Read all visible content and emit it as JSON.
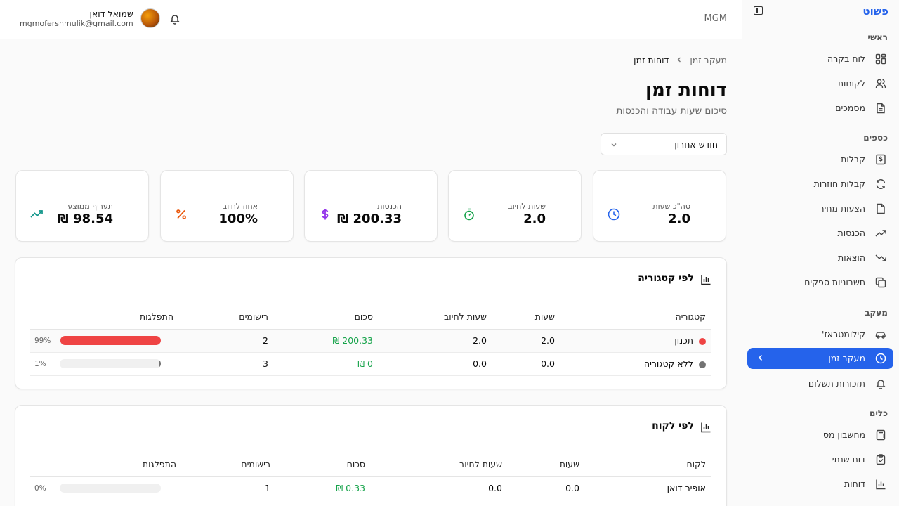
{
  "sidebar": {
    "brand": "פשוט",
    "sections": {
      "main": "ראשי",
      "money": "כספים",
      "tracking": "מעקב",
      "tools": "כלים"
    },
    "items": [
      {
        "label": "לוח בקרה",
        "icon": "dashboard-icon"
      },
      {
        "label": "לקוחות",
        "icon": "users-icon"
      },
      {
        "label": "מסמכים",
        "icon": "document-icon"
      },
      {
        "label": "קבלות",
        "icon": "receipt-icon"
      },
      {
        "label": "קבלות חוזרות",
        "icon": "refresh-icon"
      },
      {
        "label": "הצעות מחיר",
        "icon": "quote-icon"
      },
      {
        "label": "הכנסות",
        "icon": "trending-up-icon"
      },
      {
        "label": "הוצאות",
        "icon": "trending-down-icon"
      },
      {
        "label": "חשבוניות ספקים",
        "icon": "copy-icon"
      },
      {
        "label": "קילומטראז'",
        "icon": "car-icon"
      },
      {
        "label": "מעקב זמן",
        "icon": "clock-icon",
        "active": true
      },
      {
        "label": "תזכורות תשלום",
        "icon": "bell-icon"
      },
      {
        "label": "מחשבון מס",
        "icon": "calculator-icon"
      },
      {
        "label": "דוח שנתי",
        "icon": "clipboard-check-icon"
      },
      {
        "label": "דוחות",
        "icon": "bar-chart-icon"
      }
    ]
  },
  "header": {
    "app_label": "MGM",
    "user_name": "שמואל דואן",
    "user_email": "mgmofershmulik@gmail.com"
  },
  "breadcrumb": {
    "parent": "מעקב זמן",
    "current": "דוחות זמן"
  },
  "page": {
    "title": "דוחות זמן",
    "subtitle": "סיכום שעות עבודה והכנסות",
    "period": "חודש אחרון"
  },
  "stats": [
    {
      "label": "סה\"כ שעות",
      "value": "2.0",
      "icon": "clock-icon",
      "color": "#2563eb"
    },
    {
      "label": "שעות לחיוב",
      "value": "2.0",
      "icon": "timer-icon",
      "color": "#16a34a"
    },
    {
      "label": "הכנסות",
      "value": "200.33 ₪",
      "icon": "dollar-icon",
      "color": "#9333ea"
    },
    {
      "label": "אחוז לחיוב",
      "value": "100%",
      "icon": "percent-icon",
      "color": "#ea580c"
    },
    {
      "label": "תעריף ממוצע",
      "value": "98.54 ₪",
      "icon": "trending-up-icon",
      "color": "#0d9488"
    }
  ],
  "by_category": {
    "title": "לפי קטגוריה",
    "headers": [
      "קטגוריה",
      "שעות",
      "שעות לחיוב",
      "סכום",
      "רישומים",
      "התפלגות"
    ],
    "rows": [
      {
        "name": "תכנון",
        "color": "#ef4444",
        "hours": "2.0",
        "billable": "2.0",
        "amount": "200.33 ₪",
        "entries": "2",
        "pct": "99%",
        "fill": 0.99
      },
      {
        "name": "ללא קטגוריה",
        "color": "#737373",
        "hours": "0.0",
        "billable": "0.0",
        "amount": "0 ₪",
        "entries": "3",
        "pct": "1%",
        "fill": 0.01
      }
    ]
  },
  "by_client": {
    "title": "לפי לקוח",
    "headers": [
      "לקוח",
      "שעות",
      "שעות לחיוב",
      "סכום",
      "רישומים",
      "התפלגות"
    ],
    "rows": [
      {
        "name": "אופיר דואן",
        "hours": "0.0",
        "billable": "0.0",
        "amount": "0.33 ₪",
        "entries": "1",
        "pct": "0%",
        "fill": 0.0
      }
    ]
  }
}
